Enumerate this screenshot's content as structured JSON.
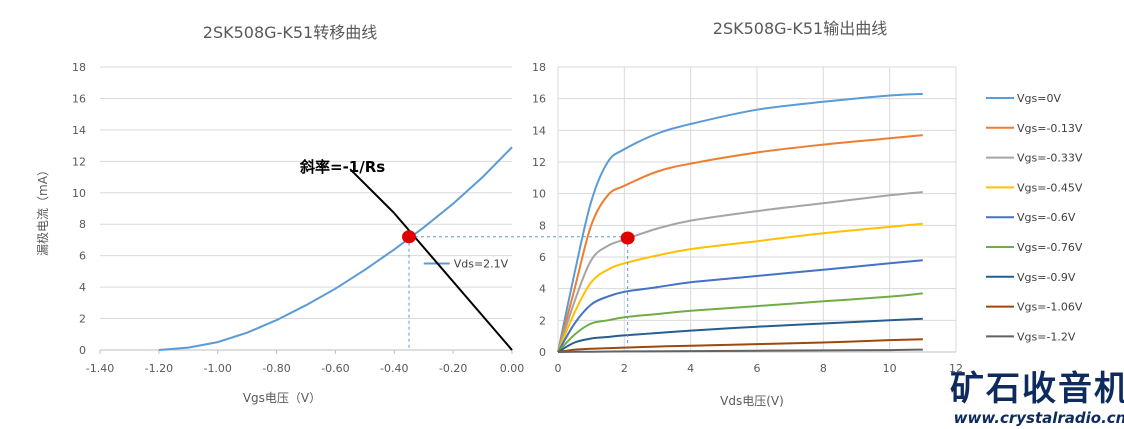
{
  "chart_data": [
    {
      "type": "line",
      "title": "2SK508G-K51转移曲线",
      "xlabel": "Vgs电压（V）",
      "ylabel": "漏极电流（mA）",
      "xlim": [
        -1.4,
        0.0
      ],
      "ylim": [
        0,
        18
      ],
      "x_ticks": [
        "-1.40",
        "-1.20",
        "-1.00",
        "-0.80",
        "-0.60",
        "-0.40",
        "-0.20",
        "0.00"
      ],
      "y_ticks": [
        "0",
        "2",
        "4",
        "6",
        "8",
        "10",
        "12",
        "14",
        "16",
        "18"
      ],
      "grid": "horizontal",
      "legend_placement": "inline",
      "series": [
        {
          "name": "Vds=2.1V",
          "color": "#5b9bd5",
          "x": [
            -1.2,
            -1.1,
            -1.0,
            -0.9,
            -0.8,
            -0.7,
            -0.6,
            -0.5,
            -0.4,
            -0.35,
            -0.3,
            -0.2,
            -0.1,
            0.0
          ],
          "y": [
            0.0,
            0.15,
            0.5,
            1.1,
            1.9,
            2.85,
            3.9,
            5.1,
            6.4,
            7.1,
            7.8,
            9.3,
            11.0,
            12.9
          ]
        }
      ],
      "load_line": {
        "x": [
          -0.4,
          0.0
        ],
        "y": [
          8.7,
          0.0
        ],
        "color": "#000000"
      },
      "annotation": "斜率=-1/Rs",
      "operating_point": {
        "x": -0.35,
        "y": 7.2,
        "color": "#e00000"
      }
    },
    {
      "type": "line",
      "title": "2SK508G-K51输出曲线",
      "xlabel": "Vds电压(V)",
      "ylabel": "",
      "xlim": [
        0,
        12
      ],
      "ylim": [
        0,
        18
      ],
      "x_ticks": [
        "0",
        "2",
        "4",
        "6",
        "8",
        "10",
        "12"
      ],
      "y_ticks": [
        "0",
        "2",
        "4",
        "6",
        "8",
        "10",
        "12",
        "14",
        "16",
        "18"
      ],
      "grid": "both",
      "legend_placement": "right",
      "operating_point": {
        "x": 2.1,
        "y": 7.2,
        "color": "#e00000"
      },
      "series": [
        {
          "name": "Vgs=0V",
          "color": "#5b9bd5",
          "x": [
            0,
            0.5,
            1,
            1.5,
            2,
            3,
            4,
            6,
            8,
            10,
            11
          ],
          "y": [
            0,
            5.0,
            9.5,
            12.0,
            12.8,
            13.8,
            14.4,
            15.3,
            15.8,
            16.2,
            16.3
          ]
        },
        {
          "name": "Vgs=-0.13V",
          "color": "#ed7d31",
          "x": [
            0,
            0.5,
            1,
            1.5,
            2,
            3,
            4,
            6,
            8,
            10,
            11
          ],
          "y": [
            0,
            4.0,
            8.0,
            9.9,
            10.5,
            11.4,
            11.9,
            12.6,
            13.1,
            13.5,
            13.7
          ]
        },
        {
          "name": "Vgs=-0.33V",
          "color": "#a5a5a5",
          "x": [
            0,
            0.5,
            1,
            1.5,
            2,
            3,
            4,
            6,
            8,
            10,
            11
          ],
          "y": [
            0,
            3.2,
            5.8,
            6.7,
            7.1,
            7.8,
            8.3,
            8.9,
            9.4,
            9.9,
            10.1
          ]
        },
        {
          "name": "Vgs=-0.45V",
          "color": "#ffc000",
          "x": [
            0,
            0.5,
            1,
            1.5,
            2,
            3,
            4,
            6,
            8,
            10,
            11
          ],
          "y": [
            0,
            2.5,
            4.4,
            5.2,
            5.6,
            6.1,
            6.5,
            7.0,
            7.5,
            7.9,
            8.1
          ]
        },
        {
          "name": "Vgs=-0.6V",
          "color": "#4472c4",
          "x": [
            0,
            0.5,
            1,
            1.5,
            2,
            3,
            4,
            6,
            8,
            10,
            11
          ],
          "y": [
            0,
            1.8,
            3.0,
            3.5,
            3.8,
            4.1,
            4.4,
            4.8,
            5.2,
            5.6,
            5.8
          ]
        },
        {
          "name": "Vgs=-0.76V",
          "color": "#70ad47",
          "x": [
            0,
            0.5,
            1,
            1.5,
            2,
            3,
            4,
            6,
            8,
            10,
            11
          ],
          "y": [
            0,
            1.1,
            1.8,
            2.0,
            2.2,
            2.4,
            2.6,
            2.9,
            3.2,
            3.5,
            3.7
          ]
        },
        {
          "name": "Vgs=-0.9V",
          "color": "#255e91",
          "x": [
            0,
            0.5,
            1,
            1.5,
            2,
            3,
            4,
            6,
            8,
            10,
            11
          ],
          "y": [
            0,
            0.6,
            0.85,
            0.95,
            1.05,
            1.2,
            1.35,
            1.6,
            1.8,
            2.0,
            2.1
          ]
        },
        {
          "name": "Vgs=-1.06V",
          "color": "#9e480e",
          "x": [
            0,
            0.5,
            1,
            2,
            4,
            6,
            8,
            10,
            11
          ],
          "y": [
            0,
            0.15,
            0.2,
            0.28,
            0.4,
            0.5,
            0.6,
            0.75,
            0.8
          ]
        },
        {
          "name": "Vgs=-1.2V",
          "color": "#636363",
          "x": [
            0,
            1,
            2,
            4,
            6,
            8,
            10,
            11
          ],
          "y": [
            0,
            0.02,
            0.04,
            0.06,
            0.08,
            0.1,
            0.12,
            0.15
          ]
        }
      ]
    }
  ],
  "watermark": {
    "name": "矿石收音机",
    "url": "www.crystalradio.cn"
  }
}
